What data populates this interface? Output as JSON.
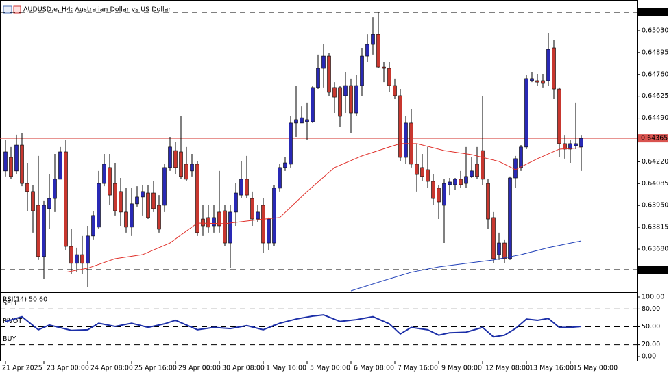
{
  "chart_data": {
    "type": "candlestick",
    "title": "AUDUSD.e, H4:  Australian Dollar vs US Dollar",
    "categories": [
      "21 Apr 2025",
      null,
      null,
      null,
      null,
      null,
      null,
      "23 Apr 00:00",
      null,
      null,
      null,
      null,
      null,
      null,
      null,
      "24 Apr 08:00",
      null,
      null,
      null,
      null,
      null,
      null,
      null,
      "25 Apr 16:00",
      null,
      null,
      null,
      null,
      null,
      null,
      null,
      "29 Apr 00:00",
      null,
      null,
      null,
      null,
      null,
      null,
      null,
      "30 Apr 08:00",
      null,
      null,
      null,
      null,
      null,
      null,
      null,
      "1 May 16:00",
      null,
      null,
      null,
      null,
      null,
      null,
      null,
      "5 May 00:00",
      null,
      null,
      null,
      null,
      null,
      null,
      null,
      "6 May 08:00",
      null,
      null,
      null,
      null,
      null,
      null,
      null,
      "7 May 16:00",
      null,
      null,
      null,
      null,
      null,
      null,
      null,
      "9 May 00:00",
      null,
      null,
      null,
      null,
      null,
      null,
      null,
      "12 May 08:00",
      null,
      null,
      null,
      null,
      null,
      null,
      null,
      "13 May 16:00",
      null,
      null,
      null,
      null,
      null,
      null,
      null,
      "15 May 00:00",
      null,
      null
    ],
    "open": [
      0.64163,
      0.64247,
      0.64163,
      0.64323,
      0.64086,
      0.64036,
      0.63951,
      0.63634,
      0.6393,
      0.63993,
      0.64112,
      0.64281,
      0.63697,
      0.63592,
      0.63646,
      0.63592,
      0.63761,
      0.63816,
      0.64086,
      0.64184,
      0.64086,
      0.64036,
      0.63909,
      0.63816,
      0.6396,
      0.64002,
      0.64027,
      0.64027,
      0.63951,
      0.63951,
      0.64184,
      0.64289,
      0.64281,
      0.64205,
      0.64163,
      0.64205,
      0.63866,
      0.63875,
      0.63824,
      0.63909,
      0.63917,
      0.63718,
      0.63909,
      0.64014,
      0.64112,
      0.63993,
      0.63866,
      0.63951,
      0.63718,
      0.63718,
      0.64057,
      0.64184,
      0.64205,
      0.64459,
      0.64459,
      0.64467,
      0.64467,
      0.64679,
      0.64797,
      0.64873,
      0.64679,
      0.64679,
      0.64628,
      0.64691,
      0.64522,
      0.64691,
      0.64873,
      0.64945,
      0.65008,
      0.64805,
      0.64797,
      0.64691,
      0.64628,
      0.64247,
      0.64459,
      0.64205,
      0.64184,
      0.64171,
      0.64099,
      0.64057,
      0.63951,
      0.64078,
      0.64078,
      0.64112,
      0.64086,
      0.64129,
      0.64205,
      0.64289,
      0.64086,
      0.63875,
      0.63646,
      0.63718,
      0.63621,
      0.6412,
      0.64184,
      0.64311,
      0.64721,
      0.64721,
      0.64721,
      0.64721,
      0.64924,
      0.6467,
      0.64332,
      0.64298,
      0.64319,
      0.64311
    ],
    "high": [
      0.64353,
      0.64311,
      0.64387,
      0.64395,
      0.64213,
      0.64078,
      0.64256,
      0.63981,
      0.64141,
      0.64268,
      0.64311,
      0.64353,
      0.63803,
      0.63689,
      0.63761,
      0.63824,
      0.63917,
      0.64163,
      0.64268,
      0.64268,
      0.64213,
      0.6412,
      0.64057,
      0.64057,
      0.64069,
      0.64078,
      0.64078,
      0.64099,
      0.64014,
      0.64205,
      0.64374,
      0.6434,
      0.64501,
      0.64311,
      0.64268,
      0.64226,
      0.63951,
      0.63951,
      0.63951,
      0.64163,
      0.63951,
      0.63951,
      0.64086,
      0.64226,
      0.64256,
      0.64036,
      0.63951,
      0.63993,
      0.63875,
      0.64078,
      0.64205,
      0.64247,
      0.64501,
      0.64691,
      0.64564,
      0.64586,
      0.64691,
      0.64882,
      0.64945,
      0.6489,
      0.64712,
      0.64691,
      0.64776,
      0.64734,
      0.64755,
      0.64924,
      0.65008,
      0.65114,
      0.65144,
      0.64839,
      0.64839,
      0.64734,
      0.6467,
      0.64501,
      0.64543,
      0.64332,
      0.64268,
      0.64311,
      0.64141,
      0.64078,
      0.64112,
      0.6412,
      0.6412,
      0.64163,
      0.64311,
      0.64247,
      0.64311,
      0.64628,
      0.64112,
      0.63909,
      0.63782,
      0.6374,
      0.64129,
      0.64256,
      0.64323,
      0.64755,
      0.64776,
      0.64763,
      0.64763,
      0.65017,
      0.64975,
      0.64679,
      0.64382,
      0.64353,
      0.64586,
      0.64382
    ],
    "low": [
      0.64129,
      0.64112,
      0.64141,
      0.64069,
      0.63917,
      0.63782,
      0.63613,
      0.63494,
      0.63803,
      0.63909,
      0.64112,
      0.63676,
      0.63528,
      0.63537,
      0.63528,
      0.63443,
      0.6374,
      0.63803,
      0.64069,
      0.63951,
      0.63888,
      0.63824,
      0.63782,
      0.63761,
      0.63943,
      0.63888,
      0.63866,
      0.63909,
      0.63782,
      0.63909,
      0.64163,
      0.64141,
      0.64112,
      0.64099,
      0.64129,
      0.63761,
      0.63761,
      0.63782,
      0.63782,
      0.63782,
      0.63697,
      0.63562,
      0.63824,
      0.63993,
      0.63993,
      0.63824,
      0.63845,
      0.63655,
      0.63676,
      0.63697,
      0.64036,
      0.64163,
      0.64184,
      0.64374,
      0.64459,
      0.64353,
      0.64459,
      0.6467,
      0.64679,
      0.64628,
      0.64522,
      0.64437,
      0.64522,
      0.64395,
      0.64501,
      0.64628,
      0.64839,
      0.64882,
      0.64797,
      0.64712,
      0.64649,
      0.64607,
      0.64226,
      0.64205,
      0.64184,
      0.64036,
      0.64099,
      0.64057,
      0.63951,
      0.63866,
      0.63718,
      0.64014,
      0.64044,
      0.64057,
      0.64057,
      0.6412,
      0.64112,
      0.64078,
      0.63803,
      0.63592,
      0.63613,
      0.63592,
      0.63613,
      0.64057,
      0.64163,
      0.64298,
      0.64712,
      0.64691,
      0.64679,
      0.64691,
      0.64607,
      0.64247,
      0.64239,
      0.64213,
      0.64298,
      0.64163
    ],
    "close": [
      0.64281,
      0.64129,
      0.64323,
      0.64086,
      0.64036,
      0.63917,
      0.63634,
      0.63951,
      0.63993,
      0.64112,
      0.64281,
      0.63697,
      0.63592,
      0.63646,
      0.63592,
      0.63761,
      0.63888,
      0.64086,
      0.64205,
      0.64014,
      0.63917,
      0.63909,
      0.63816,
      0.6396,
      0.64002,
      0.64036,
      0.63875,
      0.6393,
      0.63803,
      0.64184,
      0.64311,
      0.64184,
      0.64129,
      0.64112,
      0.64205,
      0.63782,
      0.63824,
      0.63816,
      0.63875,
      0.63824,
      0.63718,
      0.63909,
      0.64027,
      0.64112,
      0.64014,
      0.63866,
      0.63909,
      0.63718,
      0.63866,
      0.64057,
      0.64184,
      0.64213,
      0.64459,
      0.6448,
      0.64492,
      0.6448,
      0.64679,
      0.64797,
      0.64873,
      0.64649,
      0.64619,
      0.64501,
      0.64691,
      0.64522,
      0.64691,
      0.64873,
      0.64945,
      0.65008,
      0.64805,
      0.64797,
      0.64691,
      0.64628,
      0.64247,
      0.64459,
      0.64205,
      0.64141,
      0.64129,
      0.64099,
      0.63993,
      0.63972,
      0.64086,
      0.64095,
      0.64112,
      0.64078,
      0.64129,
      0.64163,
      0.64129,
      0.64112,
      0.63866,
      0.63621,
      0.63718,
      0.63621,
      0.6412,
      0.64239,
      0.64311,
      0.64734,
      0.64734,
      0.64712,
      0.64704,
      0.64915,
      0.6467,
      0.64332,
      0.64298,
      0.64332,
      0.64332,
      0.64365
    ],
    "up_color": "#2929b5",
    "down_color": "#c8372f",
    "ylim": [
      0.63422,
      0.65199
    ],
    "yticks": [
      {
        "value": 0.6503,
        "label": "0.65030"
      },
      {
        "value": 0.64895,
        "label": "0.64895"
      },
      {
        "value": 0.6476,
        "label": "0.64760"
      },
      {
        "value": 0.64625,
        "label": "0.64625"
      },
      {
        "value": 0.6449,
        "label": "0.64490"
      },
      {
        "value": 0.6422,
        "label": "0.64220"
      },
      {
        "value": 0.64085,
        "label": "0.64085"
      },
      {
        "value": 0.6395,
        "label": "0.63950"
      },
      {
        "value": 0.63815,
        "label": "0.63815"
      },
      {
        "value": 0.6368,
        "label": "0.63680"
      }
    ],
    "price_lines": [
      {
        "value": 0.65144,
        "label": "0.65144",
        "color": "#000000",
        "dashed": true
      },
      {
        "value": 0.64365,
        "label": "0.64365",
        "color": "#d9534f",
        "dashed": false
      },
      {
        "value": 0.63553,
        "label": "0.63553",
        "color": "#000000",
        "dashed": true
      }
    ],
    "overlays": [
      {
        "color": "#e0302a",
        "x": [
          11,
          15,
          20,
          25,
          30,
          35,
          40,
          45,
          50,
          55,
          60,
          65,
          70,
          72,
          75,
          80,
          85,
          90,
          93,
          97,
          101,
          105
        ],
        "values": [
          0.63537,
          0.63562,
          0.63621,
          0.63646,
          0.63718,
          0.63841,
          0.63837,
          0.63858,
          0.63875,
          0.64036,
          0.64184,
          0.64256,
          0.64311,
          0.64332,
          0.64332,
          0.64289,
          0.64264,
          0.64222,
          0.64171,
          0.64239,
          0.64298,
          0.64306
        ]
      },
      {
        "color": "#1f3fb8",
        "x": [
          63,
          69,
          74,
          79,
          84,
          89,
          94,
          99,
          105
        ],
        "values": [
          0.63422,
          0.63486,
          0.63537,
          0.6357,
          0.63592,
          0.63613,
          0.63646,
          0.63689,
          0.63731
        ]
      }
    ],
    "indicator": {
      "type": "line",
      "label": "RSI(14) 50.60",
      "color": "#1c2fa8",
      "x": [
        0,
        3,
        6,
        8,
        12,
        15,
        17,
        20,
        23,
        26,
        29,
        31,
        35,
        38,
        41,
        44,
        47,
        50,
        53,
        56,
        58,
        61,
        64,
        67,
        70,
        72,
        74,
        77,
        79,
        81,
        84,
        87,
        89,
        91,
        93,
        95,
        97,
        99,
        101,
        103,
        105
      ],
      "values": [
        58.6,
        67,
        45,
        53,
        44,
        45,
        56,
        50.6,
        56,
        49,
        55,
        61,
        45,
        49,
        47,
        52,
        45,
        56,
        63,
        68,
        70,
        59,
        62,
        67,
        55,
        38,
        49,
        45,
        36,
        40,
        41,
        49,
        33,
        36,
        47,
        63,
        61,
        64,
        49,
        49,
        50.6
      ],
      "ylim": [
        0,
        100
      ],
      "yticks": [
        {
          "value": 100,
          "label": "100.00"
        },
        {
          "value": 80,
          "label": "80.00"
        },
        {
          "value": 50,
          "label": "50.00"
        },
        {
          "value": 20,
          "label": "20.00"
        },
        {
          "value": 0,
          "label": "0.00"
        }
      ],
      "levels": [
        {
          "value": 80,
          "label": "SELL"
        },
        {
          "value": 50,
          "label": "PIVOT"
        },
        {
          "value": 20,
          "label": "BUY"
        }
      ]
    }
  }
}
